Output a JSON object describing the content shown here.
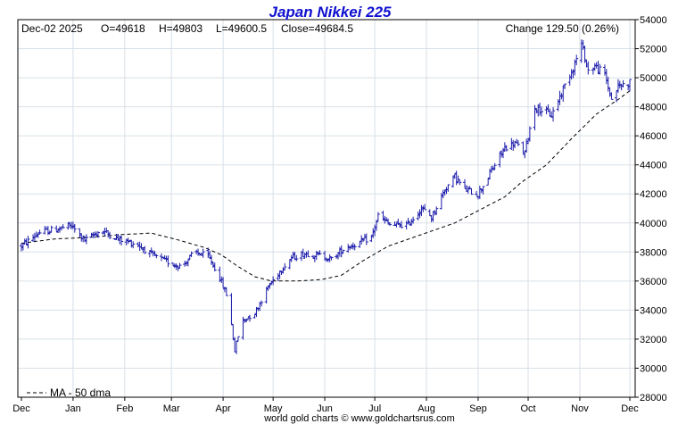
{
  "chart_data": {
    "type": "ohlc",
    "title": "Japan Nikkei 225",
    "header": {
      "date": "Dec-02  2025",
      "open": "O=49618",
      "high": "H=49803",
      "low": "L=49600.5",
      "close": "Close=49684.5",
      "change": "Change 129.50 (0.26%)"
    },
    "legend": {
      "ma_label": "MA - 50 dma",
      "placement": "bottom-left"
    },
    "footer": "world gold charts © www.goldchartsrus.com",
    "ylim": [
      28000,
      54000
    ],
    "y_ticks": [
      28000,
      30000,
      32000,
      34000,
      36000,
      38000,
      40000,
      42000,
      44000,
      46000,
      48000,
      50000,
      52000,
      54000
    ],
    "x_labels": [
      "Dec",
      "Jan",
      "Feb",
      "Mar",
      "Apr",
      "May",
      "Jun",
      "Jul",
      "Aug",
      "Sep",
      "Oct",
      "Nov",
      "Dec"
    ],
    "x_label_days": [
      0,
      31,
      62,
      90,
      121,
      151,
      182,
      212,
      243,
      274,
      304,
      335,
      365
    ],
    "grid": true,
    "colors": {
      "bars": "#1a1aaa",
      "ma": "#000000",
      "title": "#1010d0",
      "grid": "#d8e0e8"
    },
    "price_keypoints": [
      [
        0,
        38400
      ],
      [
        10,
        39300
      ],
      [
        22,
        39600
      ],
      [
        30,
        39800
      ],
      [
        38,
        38800
      ],
      [
        48,
        39500
      ],
      [
        58,
        38900
      ],
      [
        70,
        38500
      ],
      [
        78,
        37800
      ],
      [
        88,
        37300
      ],
      [
        96,
        37000
      ],
      [
        104,
        38000
      ],
      [
        112,
        37700
      ],
      [
        118,
        36500
      ],
      [
        124,
        34800
      ],
      [
        128,
        31200
      ],
      [
        132,
        33200
      ],
      [
        140,
        33800
      ],
      [
        148,
        35600
      ],
      [
        155,
        36700
      ],
      [
        162,
        37600
      ],
      [
        170,
        37900
      ],
      [
        178,
        37800
      ],
      [
        186,
        37500
      ],
      [
        194,
        38300
      ],
      [
        202,
        38600
      ],
      [
        210,
        39000
      ],
      [
        214,
        40500
      ],
      [
        222,
        39800
      ],
      [
        232,
        39900
      ],
      [
        240,
        41000
      ],
      [
        246,
        40400
      ],
      [
        254,
        42300
      ],
      [
        260,
        43200
      ],
      [
        266,
        42300
      ],
      [
        274,
        42000
      ],
      [
        282,
        43600
      ],
      [
        290,
        45200
      ],
      [
        296,
        45500
      ],
      [
        302,
        44800
      ],
      [
        304,
        46000
      ],
      [
        308,
        48000
      ],
      [
        312,
        47800
      ],
      [
        318,
        47400
      ],
      [
        326,
        49500
      ],
      [
        332,
        51000
      ],
      [
        336,
        52300
      ],
      [
        340,
        50500
      ],
      [
        344,
        50800
      ],
      [
        350,
        50200
      ],
      [
        354,
        48500
      ],
      [
        358,
        49400
      ],
      [
        365,
        49684
      ]
    ],
    "ma_keypoints": [
      [
        0,
        38600
      ],
      [
        20,
        38900
      ],
      [
        40,
        39000
      ],
      [
        60,
        39200
      ],
      [
        78,
        39300
      ],
      [
        95,
        38800
      ],
      [
        110,
        38300
      ],
      [
        120,
        37800
      ],
      [
        130,
        37000
      ],
      [
        140,
        36300
      ],
      [
        150,
        36000
      ],
      [
        165,
        36000
      ],
      [
        180,
        36100
      ],
      [
        192,
        36400
      ],
      [
        205,
        37400
      ],
      [
        220,
        38400
      ],
      [
        240,
        39200
      ],
      [
        260,
        40000
      ],
      [
        275,
        40900
      ],
      [
        290,
        41800
      ],
      [
        300,
        42800
      ],
      [
        315,
        44000
      ],
      [
        330,
        45800
      ],
      [
        345,
        47500
      ],
      [
        358,
        48500
      ],
      [
        365,
        49100
      ]
    ]
  }
}
